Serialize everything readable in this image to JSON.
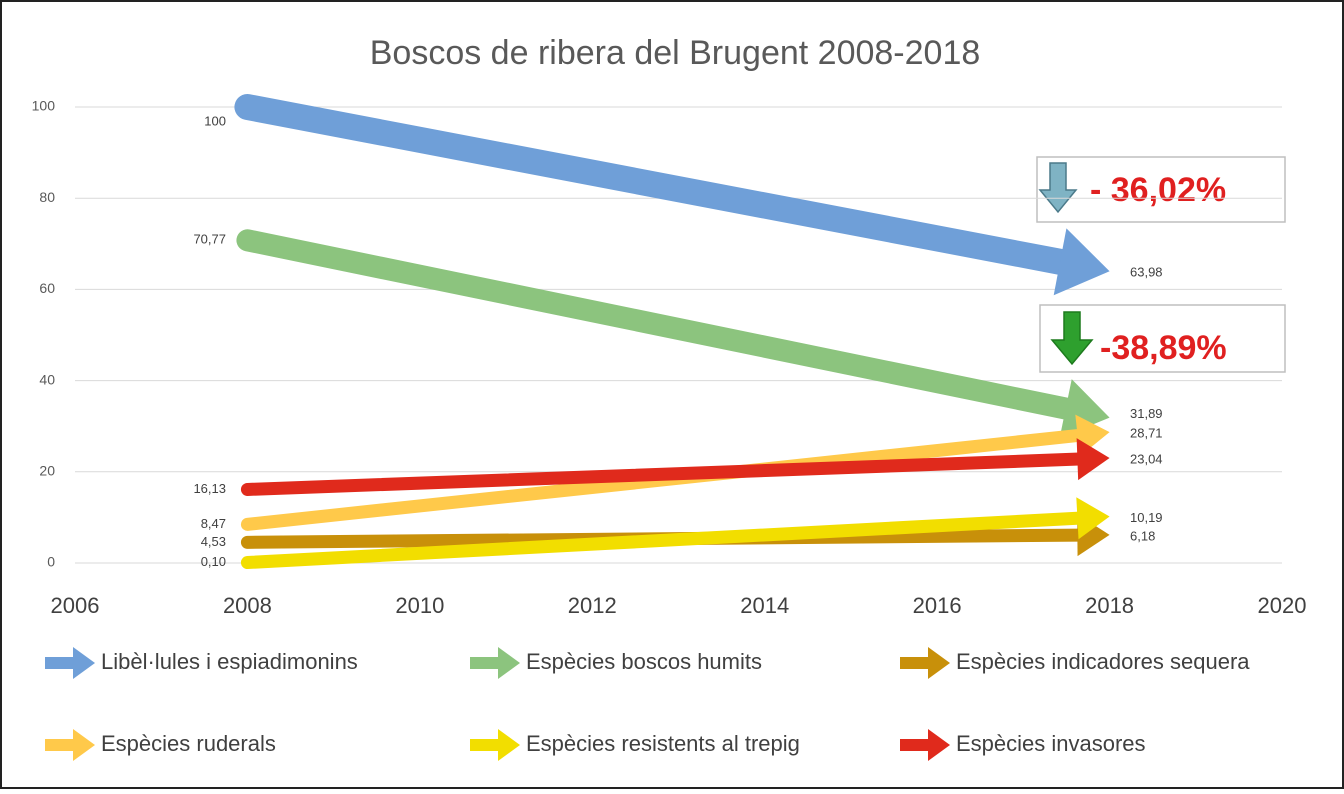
{
  "chart_data": {
    "type": "line",
    "title": "Boscos de ribera del Brugent 2008-2018",
    "x": [
      2008,
      2018
    ],
    "series": [
      {
        "name": "Libèl·lules i espiadimonins",
        "color": "#6f9fd8",
        "values": [
          100,
          63.98
        ],
        "value_labels": [
          "100",
          "63,98"
        ]
      },
      {
        "name": "Espècies boscos humits",
        "color": "#8cc47e",
        "values": [
          70.77,
          31.89
        ],
        "value_labels": [
          "70,77",
          "31,89"
        ]
      },
      {
        "name": "Espècies indicadores sequera",
        "color": "#c8900a",
        "values": [
          4.53,
          6.18
        ],
        "value_labels": [
          "4,53",
          "6,18"
        ]
      },
      {
        "name": "Espècies ruderals",
        "color": "#ffc94a",
        "values": [
          8.47,
          28.71
        ],
        "value_labels": [
          "8,47",
          "28,71"
        ]
      },
      {
        "name": "Espècies resistents al trepig",
        "color": "#f2de00",
        "values": [
          0.1,
          10.19
        ],
        "value_labels": [
          "0,10",
          "10,19"
        ]
      },
      {
        "name": "Espècies invasores",
        "color": "#e02a1c",
        "values": [
          16.13,
          23.04
        ],
        "value_labels": [
          "16,13",
          "23,04"
        ]
      }
    ],
    "annotations": [
      "- 36,02%",
      "-38,89%"
    ],
    "xlim": [
      2006,
      2020
    ],
    "xticks": [
      2006,
      2008,
      2010,
      2012,
      2014,
      2016,
      2018,
      2020
    ],
    "ylim": [
      0,
      100
    ],
    "yticks": [
      0,
      20,
      40,
      60,
      80,
      100
    ],
    "grid": true
  }
}
